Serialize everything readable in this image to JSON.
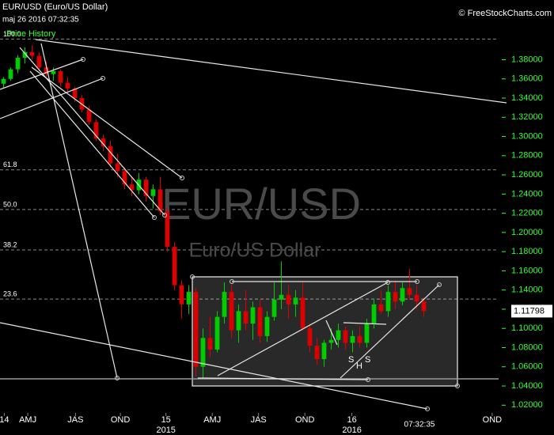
{
  "chart_data": {
    "type": "candlestick",
    "title": "EUR/USD (Euro/US Dollar)",
    "subtitle": "maj 26 2016 07:32:35",
    "credit": "© FreeStockCharts.com",
    "legend_label": "Price History",
    "watermark": "EUR/USD",
    "watermark_subtitle": "Euro/US Dollar",
    "pattern_labels": [
      "S",
      "H",
      "S"
    ],
    "time_label": "07:32:35",
    "up_color": "#00cc00",
    "down_color": "#dd0000",
    "last_price": {
      "value": 1.11798,
      "label": "1.11798"
    },
    "ylim": [
      1.012,
      1.401
    ],
    "yticks": [
      {
        "value": 1.02,
        "label": "1.02000"
      },
      {
        "value": 1.04,
        "label": "1.04000"
      },
      {
        "value": 1.06,
        "label": "1.06000"
      },
      {
        "value": 1.08,
        "label": "1.08000"
      },
      {
        "value": 1.1,
        "label": "1.10000"
      },
      {
        "value": 1.12,
        "label": "1.12000"
      },
      {
        "value": 1.14,
        "label": "1.14000"
      },
      {
        "value": 1.16,
        "label": "1.16000"
      },
      {
        "value": 1.18,
        "label": "1.18000"
      },
      {
        "value": 1.2,
        "label": "1.20000"
      },
      {
        "value": 1.22,
        "label": "1.22000"
      },
      {
        "value": 1.24,
        "label": "1.24000"
      },
      {
        "value": 1.26,
        "label": "1.26000"
      },
      {
        "value": 1.28,
        "label": "1.28000"
      },
      {
        "value": 1.3,
        "label": "1.30000"
      },
      {
        "value": 1.32,
        "label": "1.32000"
      },
      {
        "value": 1.34,
        "label": "1.34000"
      },
      {
        "value": 1.36,
        "label": "1.36000"
      },
      {
        "value": 1.38,
        "label": "1.38000"
      }
    ],
    "fib_levels": [
      {
        "value": 1.4015,
        "label": "100.0"
      },
      {
        "value": 1.2652,
        "label": "61.8"
      },
      {
        "value": 1.2239,
        "label": "50.0"
      },
      {
        "value": 1.1818,
        "label": "38.2"
      },
      {
        "value": 1.1306,
        "label": "23.6"
      }
    ],
    "xlim": [
      0,
      70
    ],
    "xticks": [
      {
        "value": 0.6,
        "label": "14"
      },
      {
        "value": 3.9,
        "label": "AMJ"
      },
      {
        "value": 10.6,
        "label": "JAS"
      },
      {
        "value": 16.9,
        "label": "OND"
      },
      {
        "value": 23.3,
        "label": "15"
      },
      {
        "value": 29.8,
        "label": "AMJ"
      },
      {
        "value": 36.3,
        "label": "JAS"
      },
      {
        "value": 42.8,
        "label": "OND"
      },
      {
        "value": 49.4,
        "label": "16"
      },
      {
        "value": 69.1,
        "label": "OND"
      }
    ],
    "year_labels": [
      {
        "value": 23.3,
        "label": "2015"
      },
      {
        "value": 49.4,
        "label": "2016"
      }
    ],
    "ohlc": [
      [
        1.355,
        1.362,
        1.35,
        1.36
      ],
      [
        1.36,
        1.372,
        1.358,
        1.37
      ],
      [
        1.37,
        1.385,
        1.366,
        1.382
      ],
      [
        1.382,
        1.393,
        1.376,
        1.388
      ],
      [
        1.388,
        1.395,
        1.38,
        1.384
      ],
      [
        1.384,
        1.388,
        1.368,
        1.372
      ],
      [
        1.372,
        1.378,
        1.362,
        1.365
      ],
      [
        1.365,
        1.372,
        1.358,
        1.368
      ],
      [
        1.368,
        1.37,
        1.352,
        1.356
      ],
      [
        1.356,
        1.362,
        1.346,
        1.35
      ],
      [
        1.35,
        1.352,
        1.336,
        1.34
      ],
      [
        1.34,
        1.343,
        1.325,
        1.328
      ],
      [
        1.328,
        1.332,
        1.312,
        1.315
      ],
      [
        1.315,
        1.318,
        1.295,
        1.298
      ],
      [
        1.298,
        1.302,
        1.285,
        1.29
      ],
      [
        1.29,
        1.296,
        1.268,
        1.272
      ],
      [
        1.272,
        1.282,
        1.258,
        1.264
      ],
      [
        1.264,
        1.268,
        1.245,
        1.25
      ],
      [
        1.25,
        1.258,
        1.238,
        1.244
      ],
      [
        1.244,
        1.262,
        1.24,
        1.255
      ],
      [
        1.255,
        1.258,
        1.232,
        1.238
      ],
      [
        1.238,
        1.25,
        1.225,
        1.245
      ],
      [
        1.245,
        1.258,
        1.218,
        1.222
      ],
      [
        1.222,
        1.226,
        1.18,
        1.185
      ],
      [
        1.185,
        1.19,
        1.14,
        1.145
      ],
      [
        1.145,
        1.15,
        1.11,
        1.125
      ],
      [
        1.125,
        1.145,
        1.115,
        1.138
      ],
      [
        1.138,
        1.142,
        1.05,
        1.06
      ],
      [
        1.06,
        1.1,
        1.048,
        1.09
      ],
      [
        1.09,
        1.112,
        1.07,
        1.078
      ],
      [
        1.078,
        1.118,
        1.075,
        1.112
      ],
      [
        1.112,
        1.148,
        1.105,
        1.138
      ],
      [
        1.138,
        1.145,
        1.09,
        1.098
      ],
      [
        1.098,
        1.125,
        1.085,
        1.118
      ],
      [
        1.118,
        1.14,
        1.098,
        1.105
      ],
      [
        1.105,
        1.128,
        1.088,
        1.122
      ],
      [
        1.122,
        1.13,
        1.085,
        1.092
      ],
      [
        1.092,
        1.118,
        1.086,
        1.112
      ],
      [
        1.112,
        1.148,
        1.108,
        1.13
      ],
      [
        1.13,
        1.17,
        1.12,
        1.135
      ],
      [
        1.135,
        1.145,
        1.11,
        1.125
      ],
      [
        1.125,
        1.14,
        1.112,
        1.132
      ],
      [
        1.132,
        1.148,
        1.098,
        1.1
      ],
      [
        1.1,
        1.105,
        1.075,
        1.082
      ],
      [
        1.082,
        1.09,
        1.062,
        1.068
      ],
      [
        1.068,
        1.088,
        1.06,
        1.085
      ],
      [
        1.085,
        1.1,
        1.078,
        1.088
      ],
      [
        1.088,
        1.105,
        1.08,
        1.098
      ],
      [
        1.098,
        1.102,
        1.078,
        1.085
      ],
      [
        1.085,
        1.098,
        1.075,
        1.092
      ],
      [
        1.092,
        1.102,
        1.08,
        1.085
      ],
      [
        1.085,
        1.11,
        1.08,
        1.105
      ],
      [
        1.105,
        1.13,
        1.1,
        1.125
      ],
      [
        1.125,
        1.14,
        1.115,
        1.118
      ],
      [
        1.118,
        1.145,
        1.112,
        1.138
      ],
      [
        1.138,
        1.15,
        1.12,
        1.128
      ],
      [
        1.128,
        1.148,
        1.124,
        1.142
      ],
      [
        1.142,
        1.162,
        1.13,
        1.135
      ],
      [
        1.135,
        1.145,
        1.12,
        1.128
      ],
      [
        1.128,
        1.132,
        1.112,
        1.118
      ]
    ]
  }
}
